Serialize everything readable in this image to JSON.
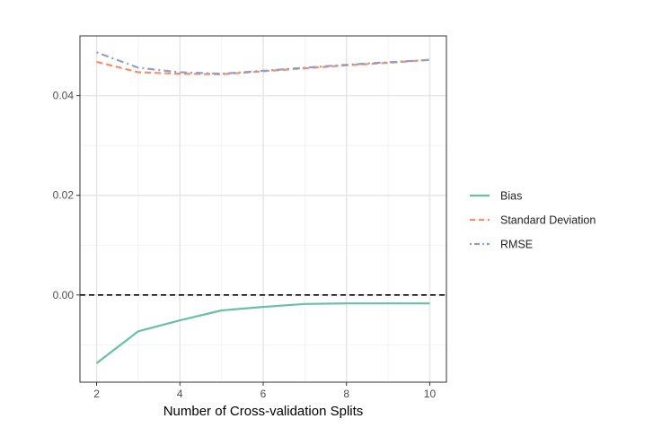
{
  "chart_data": {
    "type": "line",
    "title": "",
    "xlabel": "Number of Cross-validation Splits",
    "ylabel": "",
    "xlim": [
      1.6,
      10.4
    ],
    "ylim": [
      -0.0175,
      0.052
    ],
    "x_ticks": [
      2,
      4,
      6,
      8,
      10
    ],
    "x_tick_labels": [
      "2",
      "4",
      "6",
      "8",
      "10"
    ],
    "y_ticks": [
      0.0,
      0.02,
      0.04
    ],
    "y_tick_labels": [
      "0.00",
      "0.02",
      "0.04"
    ],
    "grid": true,
    "legend_position": "right",
    "reference_line": {
      "y": 0.0,
      "style": "dashed",
      "color": "#000000"
    },
    "x": [
      2,
      3,
      4,
      5,
      6,
      7,
      8,
      9,
      10
    ],
    "series": [
      {
        "name": "Bias",
        "color": "#66c2a5",
        "dash": "solid",
        "values": [
          -0.0137,
          -0.0073,
          -0.0051,
          -0.0031,
          -0.0024,
          -0.0018,
          -0.0017,
          -0.0017,
          -0.0017
        ]
      },
      {
        "name": "Standard Deviation",
        "color": "#fc8d62",
        "dash": "dashed",
        "values": [
          0.0468,
          0.0447,
          0.0444,
          0.0443,
          0.0449,
          0.0455,
          0.0461,
          0.0466,
          0.0472
        ]
      },
      {
        "name": "RMSE",
        "color": "#8da0cb",
        "dash": "dotdash",
        "values": [
          0.0487,
          0.0456,
          0.0447,
          0.0444,
          0.045,
          0.0456,
          0.0462,
          0.0467,
          0.0472
        ]
      }
    ]
  }
}
